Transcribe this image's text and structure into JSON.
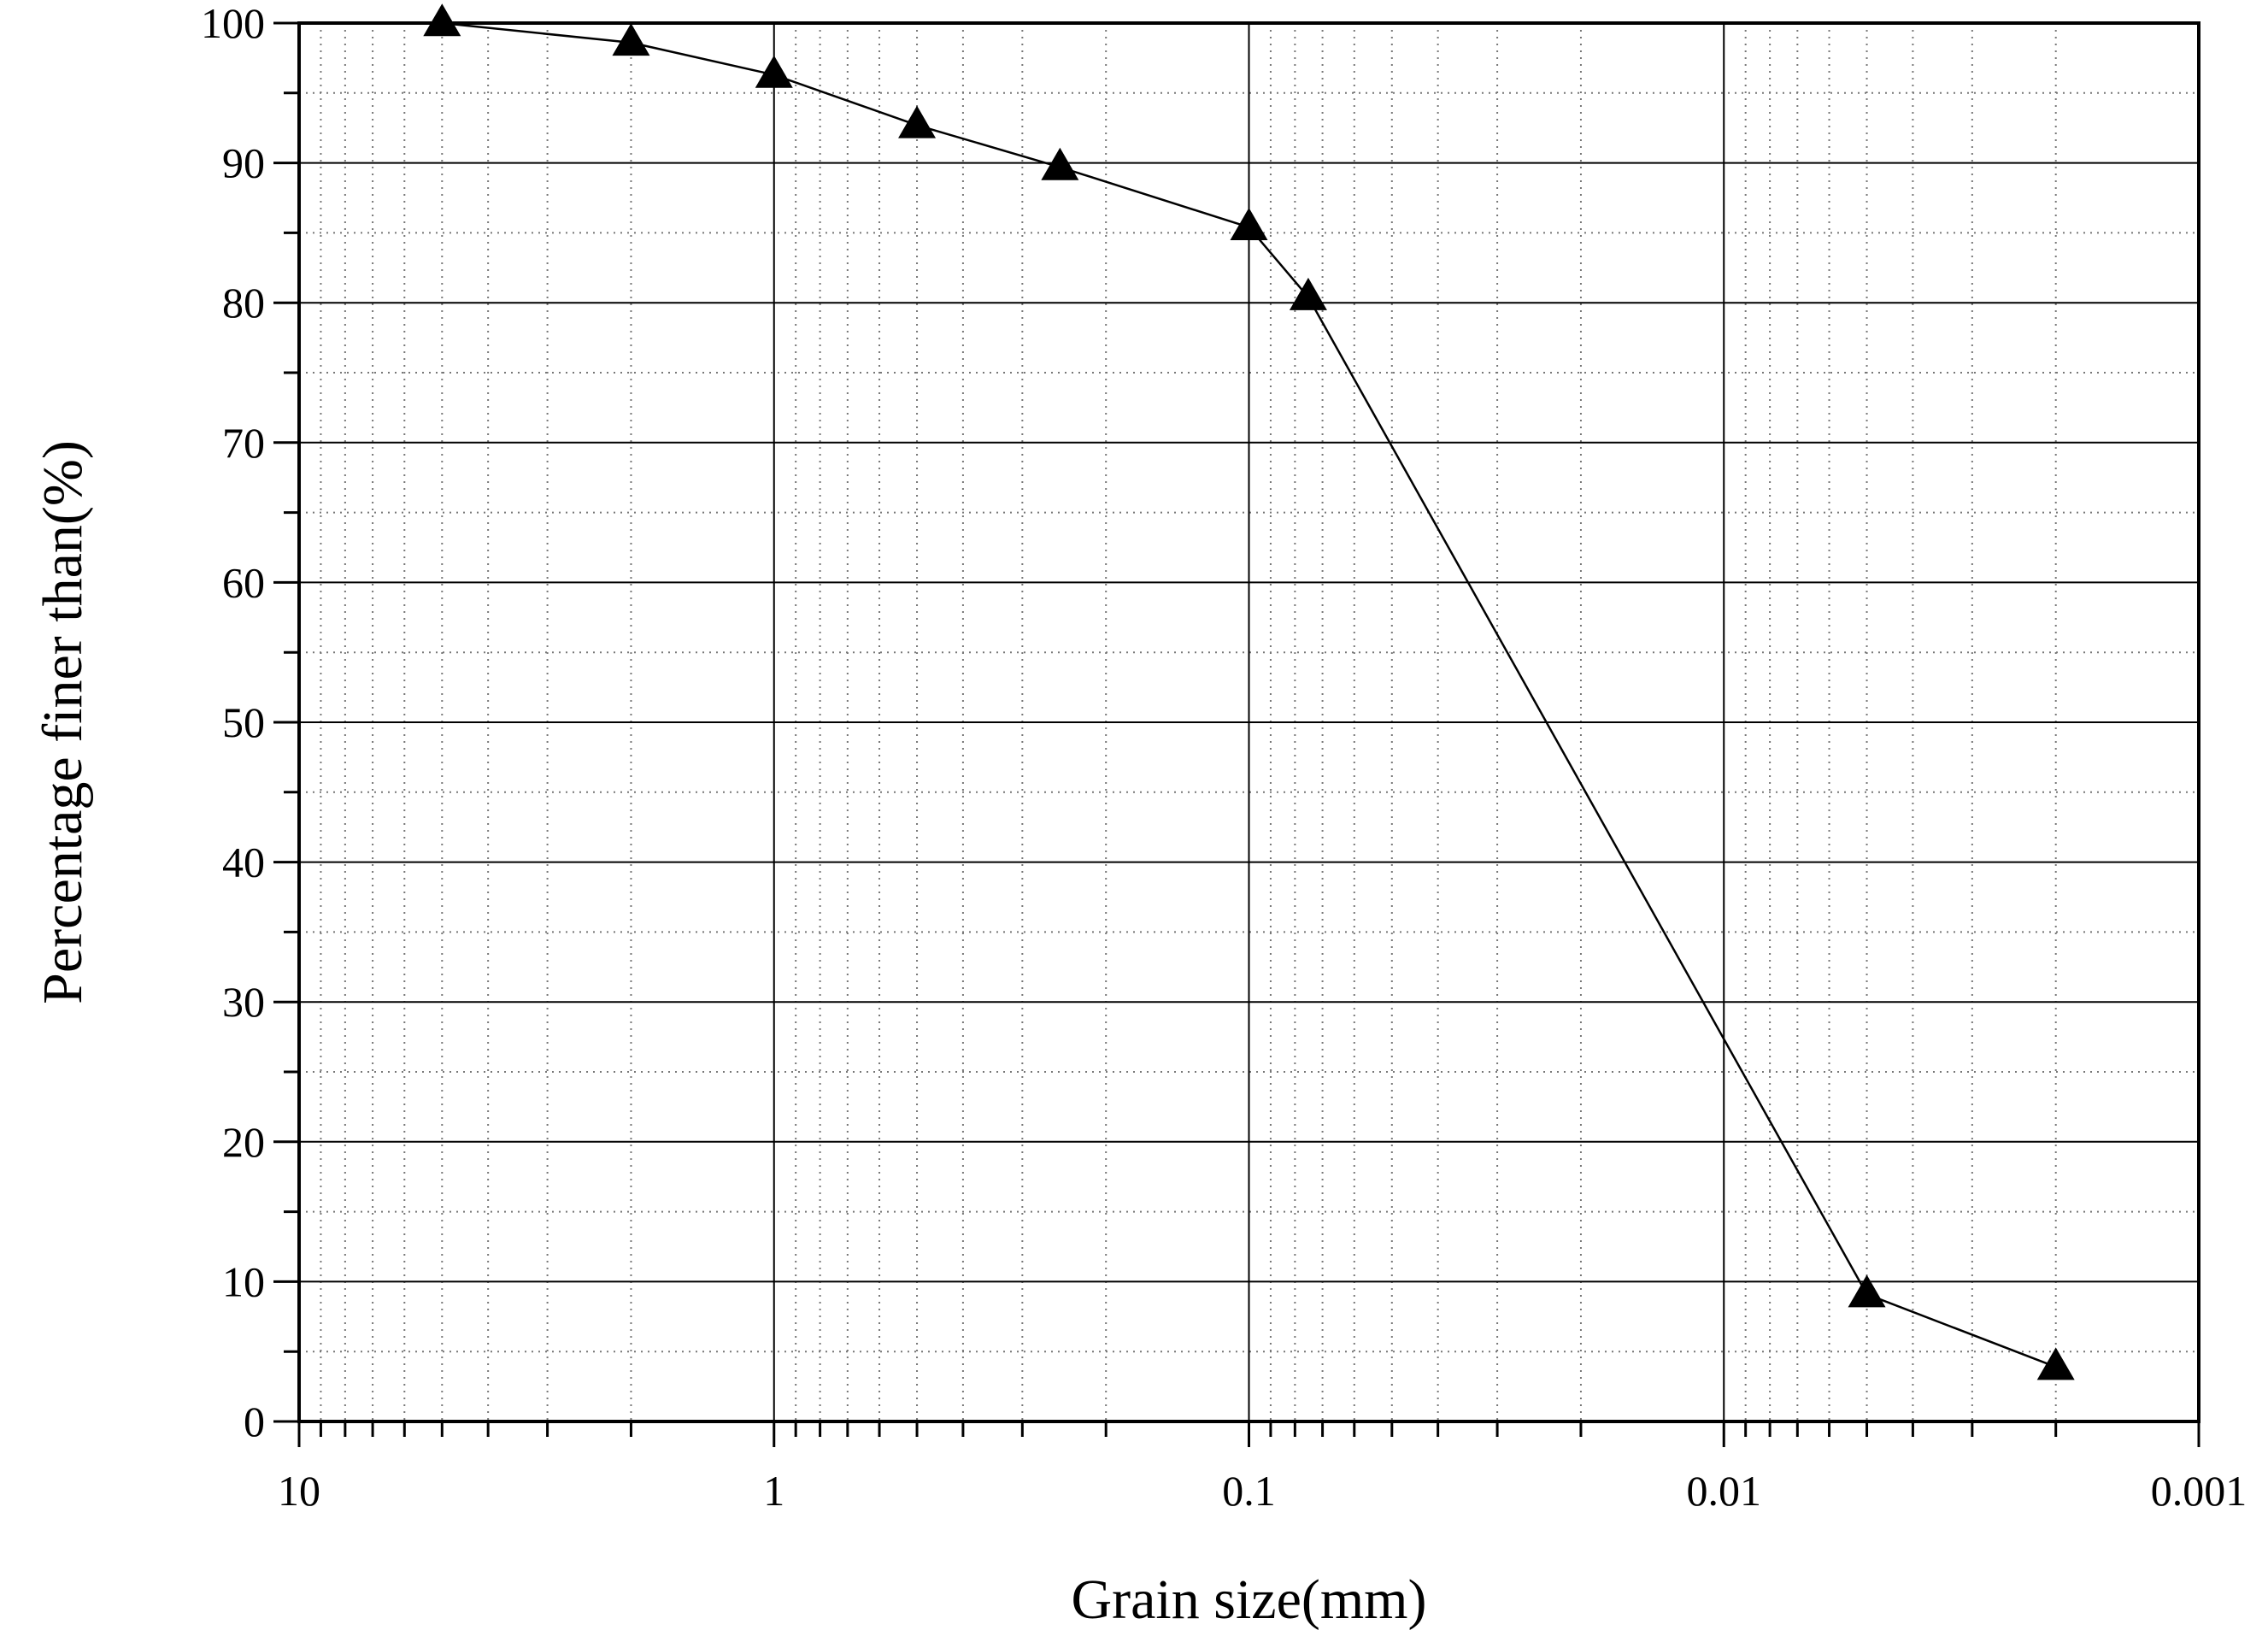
{
  "chart_data": {
    "type": "line",
    "xlabel": "Grain size(mm)",
    "ylabel": "Percentage finer than(%)",
    "x_scale": "log",
    "x_reversed": true,
    "xlim": [
      10,
      0.001
    ],
    "ylim": [
      0,
      100
    ],
    "x_ticks": [
      10,
      1,
      0.1,
      0.01,
      0.001
    ],
    "x_tick_labels": [
      "10",
      "1",
      "0.1",
      "0.01",
      "0.001"
    ],
    "y_ticks": [
      0,
      10,
      20,
      30,
      40,
      50,
      60,
      70,
      80,
      90,
      100
    ],
    "y_tick_labels": [
      "0",
      "10",
      "20",
      "30",
      "40",
      "50",
      "60",
      "70",
      "80",
      "90",
      "100"
    ],
    "grid": true,
    "marker": "triangle",
    "color": "#000000",
    "series": [
      {
        "x": [
          5,
          2,
          1,
          0.5,
          0.25,
          0.1,
          0.075,
          0.005,
          0.002
        ],
        "y": [
          100,
          98.6,
          96.3,
          92.7,
          89.7,
          85.4,
          80.4,
          9.1,
          3.9
        ]
      }
    ]
  }
}
